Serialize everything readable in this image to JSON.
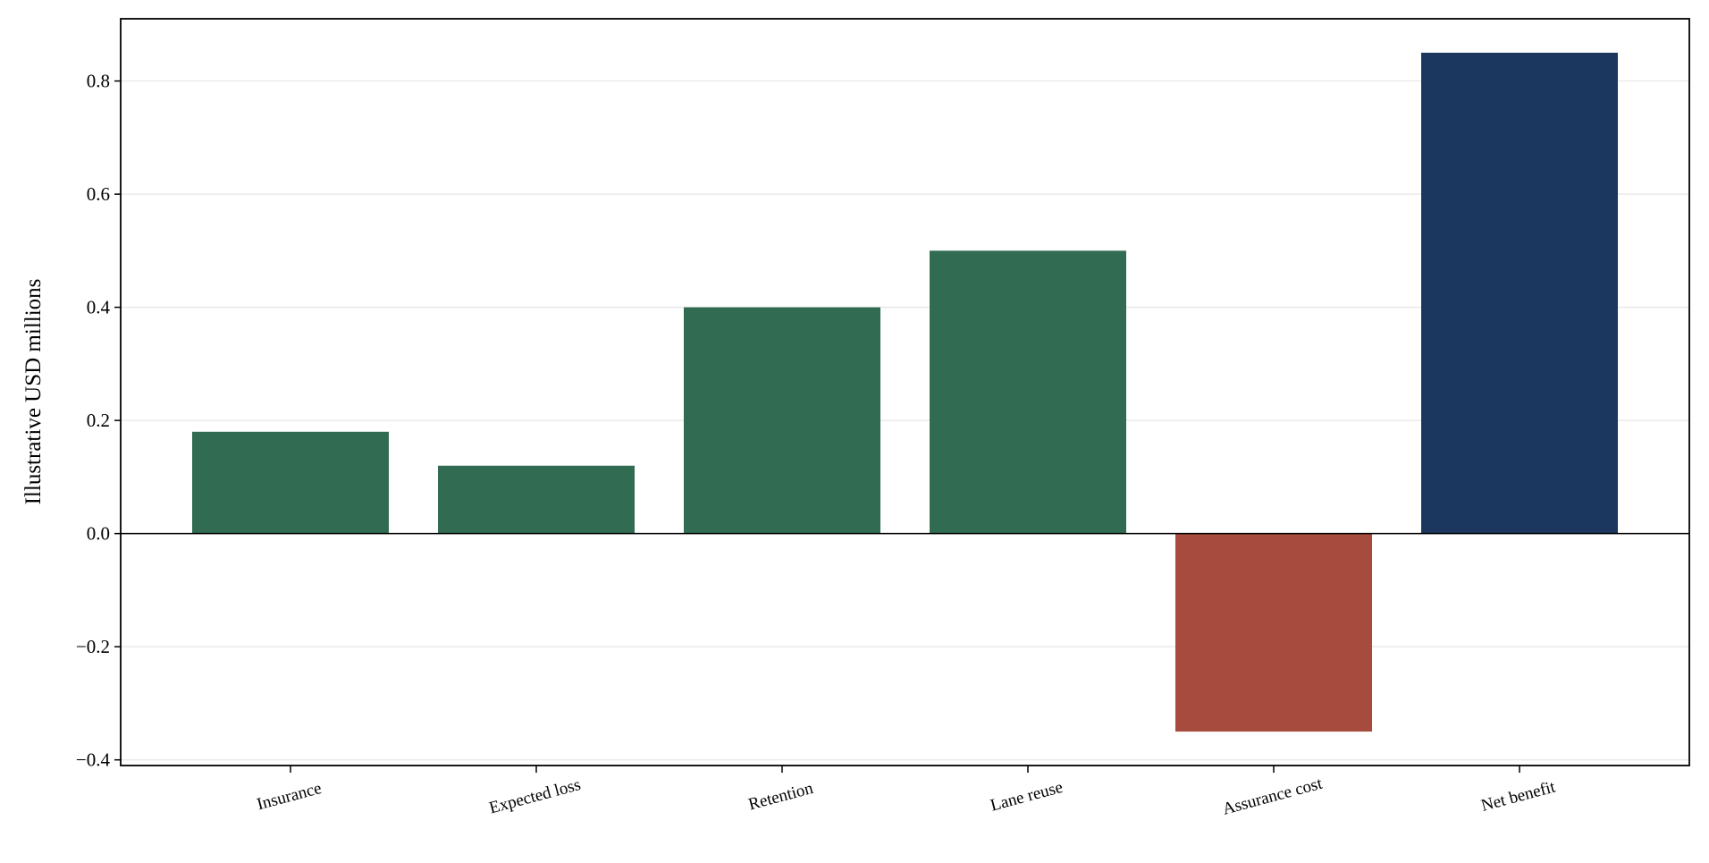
{
  "chart_data": {
    "type": "bar",
    "categories": [
      "Insurance",
      "Expected loss",
      "Retention",
      "Lane reuse",
      "Assurance cost",
      "Net benefit"
    ],
    "values": [
      0.18,
      0.12,
      0.4,
      0.5,
      -0.35,
      0.85
    ],
    "bar_colors": [
      "#316b51",
      "#316b51",
      "#316b51",
      "#316b51",
      "#a64b3d",
      "#1b365f"
    ],
    "xlabel": "",
    "ylabel": "Illustrative USD millions",
    "ylim": [
      -0.41,
      0.91
    ],
    "yticks": [
      -0.4,
      -0.2,
      0.0,
      0.2,
      0.4,
      0.6,
      0.8
    ],
    "ytick_labels": [
      "−0.4",
      "−0.2",
      "0.0",
      "0.2",
      "0.4",
      "0.6",
      "0.8"
    ],
    "grid": "y",
    "legend": "none"
  }
}
